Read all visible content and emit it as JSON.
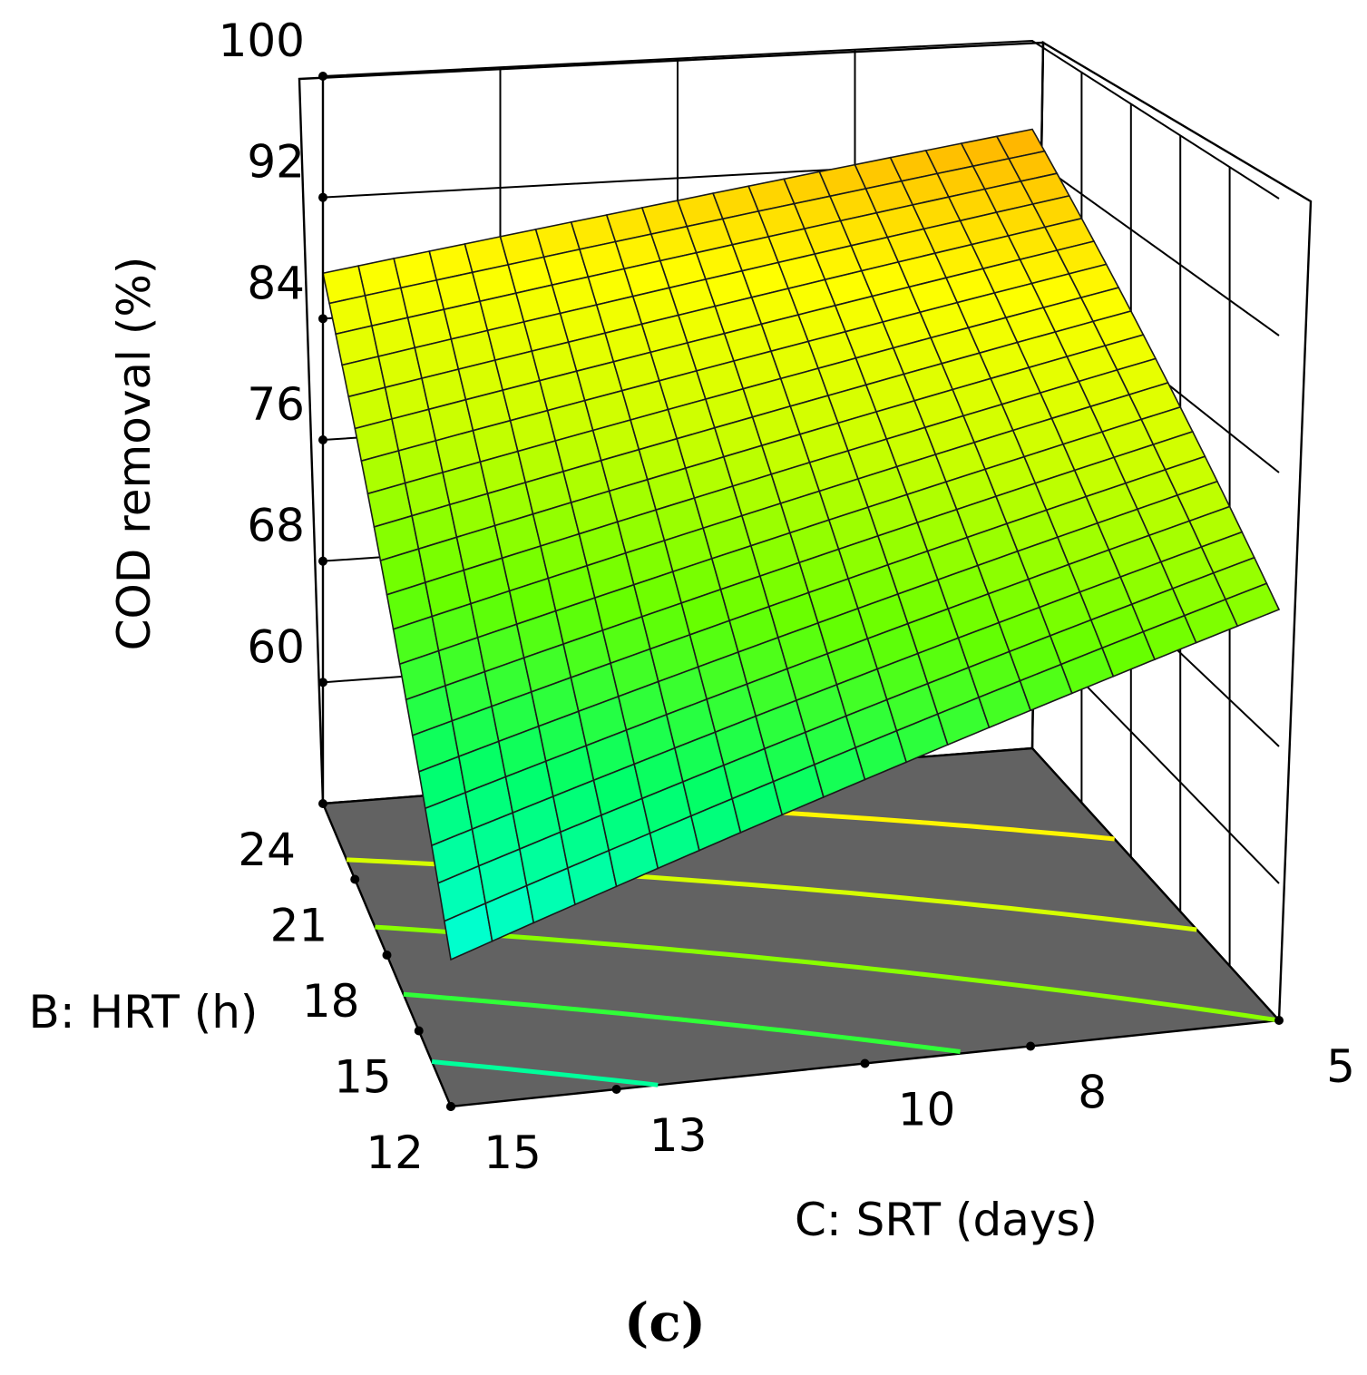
{
  "chart_data": {
    "type": "surface",
    "title": "",
    "panel_label": "(c)",
    "zlabel": "COD removal (%)",
    "xlabel": "C: SRT (days)",
    "ylabel": "B: HRT (h)",
    "z_ticks": [
      "60",
      "68",
      "76",
      "84",
      "92",
      "100"
    ],
    "srt_ticks": [
      "15",
      "13",
      "10",
      "8",
      "5"
    ],
    "hrt_ticks": [
      "12",
      "15",
      "18",
      "21",
      "24"
    ],
    "zlim": [
      52,
      100
    ],
    "srt_range": [
      5,
      15
    ],
    "hrt_range": [
      12,
      24
    ],
    "surface_corners": {
      "srt15_hrt12": 60,
      "srt15_hrt24": 87,
      "srt5_hrt12": 76,
      "srt5_hrt24": 94
    },
    "grid_divisions": 20,
    "contour_levels": [
      64,
      70,
      76,
      82,
      88
    ],
    "colormap": [
      "#00ffe0",
      "#00ff6a",
      "#66ff00",
      "#c8ff00",
      "#ffff00",
      "#ffb000"
    ],
    "floor_color": "#626262"
  }
}
